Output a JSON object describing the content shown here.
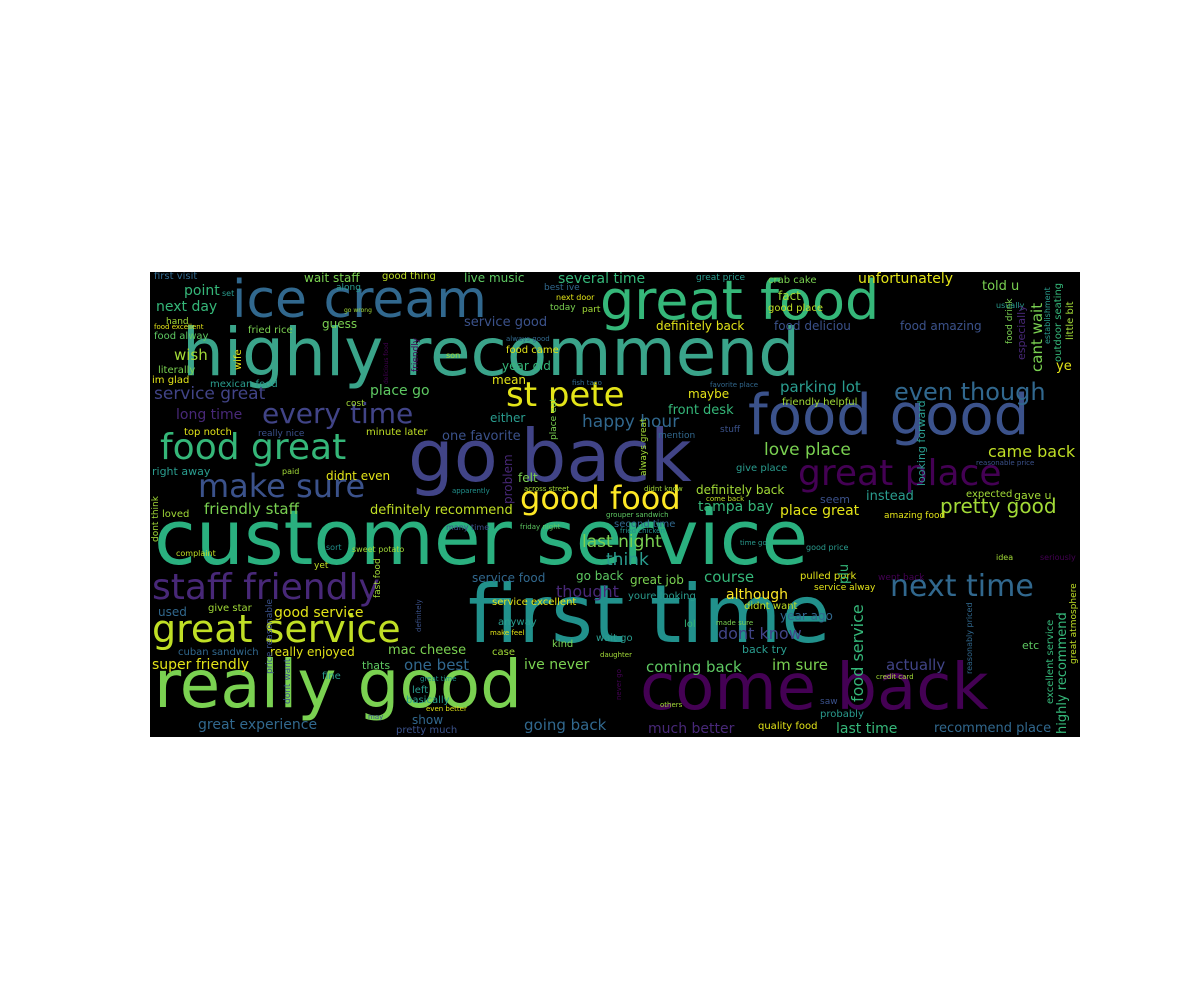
{
  "palette": {
    "background": "#000000",
    "yellow": "#e3e418",
    "lime": "#a2da37",
    "green": "#5ec962",
    "teal": "#2a9d8f",
    "cyan": "#21918c",
    "blue": "#3b528b",
    "indigo": "#414487",
    "purple": "#440154",
    "violet": "#482878",
    "slate": "#31688e"
  },
  "words": {
    "customer_service": "customer service",
    "first_time": "first time",
    "highly_recommend": "highly recommend",
    "go_back": "go back",
    "really_good": "really good",
    "come_back": "come back",
    "food_good": "food good",
    "great_food": "great food",
    "ice_cream": "ice cream",
    "great_service": "great service",
    "food_great": "food great",
    "good_food": "good food",
    "st_pete": "st pete",
    "staff_friendly": "staff friendly",
    "great_place": "great place",
    "make_sure": "make sure",
    "next_time": "next time",
    "every_time": "every time",
    "even_though": "even though",
    "pretty_good": "pretty good",
    "service_great": "service great",
    "friendly_staff": "friendly staff",
    "love_place": "love place",
    "happy_hour": "happy hour",
    "last_night": "last night",
    "think": "think",
    "came_back": "came back",
    "parking_lot": "parking lot",
    "definitely_recommend": "definitely recommend",
    "definitely_back": "definitely back",
    "several_time": "several time",
    "unfortunately": "unfortunately",
    "told_u": "told u",
    "point": "point",
    "next_day": "next day",
    "wish": "wish",
    "long_time": "long time",
    "place_go": "place go",
    "one_favorite": "one favorite",
    "front_desk": "front desk",
    "tampa_bay": "tampa bay",
    "place_great": "place great",
    "instead": "instead",
    "seem": "seem",
    "gave_u": "gave u",
    "expected": "expected",
    "amazing_food": "amazing food",
    "good_service": "good service",
    "super_friendly": "super friendly",
    "really_enjoyed": "really enjoyed",
    "great_experience": "great experience",
    "going_back": "going back",
    "much_better": "much better",
    "last_time": "last time",
    "recommend_place": "recommend place",
    "coming_back": "coming back",
    "ive_never": "ive never",
    "one_best": "one best",
    "mac_cheese": "mac cheese",
    "dont_know": "dont know",
    "im_sure": "im sure",
    "actually": "actually",
    "although": "although",
    "course": "course",
    "great_job": "great job",
    "thought": "thought",
    "service_food": "service food",
    "go_back_small": "go back",
    "wait_staff": "wait staff",
    "good_thing": "good thing",
    "live_music": "live music",
    "crab_cake": "crab cake",
    "great_price": "great price",
    "first_visit": "first visit",
    "fried_rice": "fried rice",
    "food_alway": "food alway",
    "literally": "literally",
    "im_glad": "im glad",
    "mexican_food": "mexican food",
    "guess": "guess",
    "service_good": "service good",
    "definitely_back_2": "definitely back",
    "food_deliciou": "food deliciou",
    "food_amazing": "food amazing",
    "cant_wait": "cant wait",
    "ye": "ye",
    "year_old": "year old",
    "mean": "mean",
    "maybe": "maybe",
    "either": "either",
    "felt": "felt",
    "food_came": "food came",
    "fact": "fact",
    "good_place": "good place",
    "top_notch": "top notch",
    "really_nice": "really nice",
    "minute_later": "minute later",
    "right_away": "right away",
    "didnt_even": "didnt even",
    "give_place": "give place",
    "friendly_helpful": "friendly helpful",
    "loved": "loved",
    "second_time": "second time",
    "used": "used",
    "give_star": "give star",
    "cuban_sandwich": "cuban sandwich",
    "thats": "thats",
    "fine": "fine",
    "left": "left",
    "basically": "basically",
    "show": "show",
    "pretty_much": "pretty much",
    "anyway": "anyway",
    "case": "case",
    "kind": "kind",
    "wait_go": "wait go",
    "lol": "lol",
    "year_ago": "year ago",
    "back_try": "back try",
    "didnt_want": "didnt want",
    "pulled_pork": "pulled pork",
    "service_alway": "service alway",
    "went_back": "went back",
    "etc": "etc",
    "probably": "probably",
    "quality_food": "quality food",
    "service_excellent": "service excellent",
    "youre_looking": "youre looking",
    "food_service": "food service",
    "plu": "plu",
    "problem": "problem",
    "looking_forward": "looking forward",
    "especially": "especially",
    "highly_recommend_v": "highly recommend",
    "great_atmosphere": "great atmosphere",
    "little_bit": "little bit",
    "outdoor_seating": "outdoor seating",
    "food_drink": "food drink",
    "excellent_service": "excellent service",
    "reasonably_priced": "reasonably priced",
    "price_reasonable": "price reasonable",
    "dont_think": "dont think",
    "wife": "wife",
    "friendly": "friendly",
    "sweet_potato": "sweet potato",
    "fast_food": "fast food",
    "dont_want": "dont want",
    "always_great": "always great",
    "place_eat": "place eat",
    "set": "set",
    "along": "along",
    "usually": "usually",
    "hand": "hand",
    "food_excellent": "food excellent",
    "go_wrong": "go wrong",
    "son": "son",
    "cost": "cost",
    "paid": "paid",
    "complaint": "complaint",
    "sort": "sort",
    "yet": "yet",
    "definitely": "definitely",
    "make_feel": "make feel",
    "daughter": "daughter",
    "never_go": "never go",
    "even_better": "even better",
    "others": "others",
    "made_sure": "made sure",
    "time_go": "time go",
    "great_time": "great time",
    "saw": "saw",
    "may": "may",
    "credit_card": "credit card",
    "good_price": "good price",
    "idea": "idea",
    "seriously": "seriously",
    "across_street": "across street",
    "apparently": "apparently",
    "friday_night": "friday night",
    "grouper_sandwich": "grouper sandwich",
    "fried_chicken": "fried chicken",
    "didnt_know": "didnt know",
    "come_back_small": "come back",
    "reasonable_price": "reasonable price",
    "always_good": "always good",
    "next_door": "next door",
    "today": "today",
    "best_ive": "best ive",
    "part": "part",
    "fish_taco": "fish taco",
    "favorite_place": "favorite place",
    "stuff": "stuff",
    "mention": "mention",
    "many_time": "many time",
    "delicious_food": "delicious food",
    "establishment": "establishment"
  }
}
